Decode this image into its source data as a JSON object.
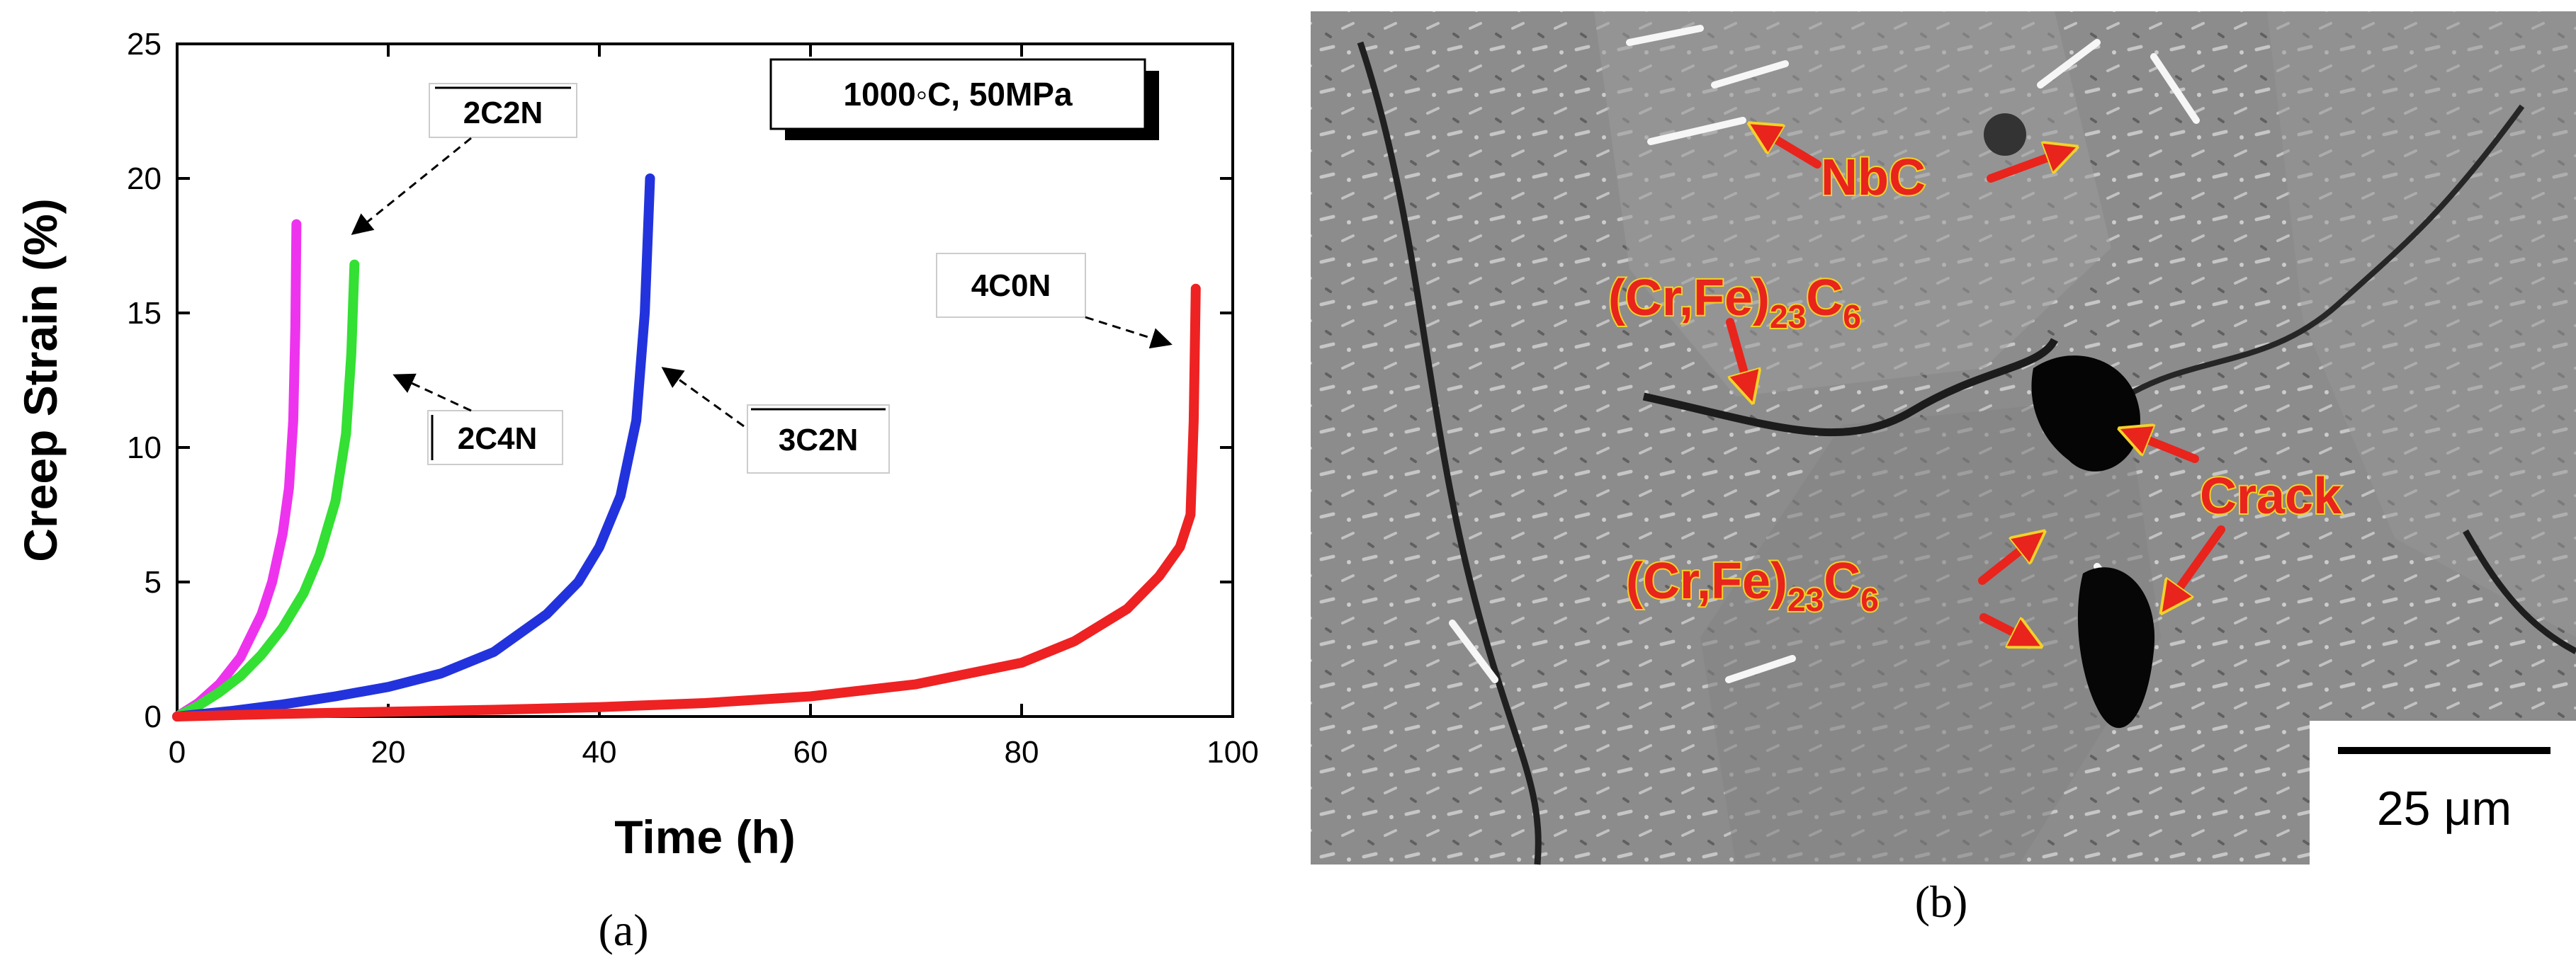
{
  "panel_a": {
    "label": "(a)",
    "condition": "1000◦C, 50MPa",
    "annotations": [
      "2C2N",
      "2C4N",
      "3C2N",
      "4C0N"
    ]
  },
  "panel_b": {
    "label": "(b)",
    "phase_labels": {
      "nbc": "NbC",
      "carbide_main": "(Cr,Fe)",
      "carbide_sub1": "23",
      "carbide_c": "C",
      "carbide_sub2": "6",
      "crack": "Crack"
    },
    "scale_bar": "25 μm"
  },
  "chart_data": {
    "type": "line",
    "title": "",
    "xlabel": "Time (h)",
    "ylabel": "Creep Strain (%)",
    "xlim": [
      0,
      100
    ],
    "ylim": [
      0,
      25
    ],
    "xticks": [
      0,
      20,
      40,
      60,
      80,
      100
    ],
    "yticks": [
      0,
      5,
      10,
      15,
      20,
      25
    ],
    "grid": false,
    "series": [
      {
        "name": "2C2N",
        "color": "#ee33ee",
        "x": [
          0,
          2,
          4,
          6,
          8,
          9,
          10,
          10.6,
          11,
          11.2,
          11.3
        ],
        "y": [
          0,
          0.5,
          1.2,
          2.2,
          3.8,
          5.0,
          6.8,
          8.5,
          11.0,
          14.5,
          18.3
        ]
      },
      {
        "name": "2C4N",
        "color": "#33e033",
        "x": [
          0,
          2,
          4,
          6,
          8,
          10,
          12,
          13.5,
          15,
          16,
          16.5,
          16.8
        ],
        "y": [
          0,
          0.4,
          0.9,
          1.5,
          2.3,
          3.3,
          4.6,
          6.0,
          8.0,
          10.5,
          13.5,
          16.8
        ]
      },
      {
        "name": "3C2N",
        "color": "#2233dd",
        "x": [
          0,
          5,
          10,
          15,
          20,
          25,
          30,
          35,
          38,
          40,
          42,
          43.5,
          44.3,
          44.8
        ],
        "y": [
          0,
          0.2,
          0.45,
          0.75,
          1.1,
          1.6,
          2.4,
          3.8,
          5.0,
          6.3,
          8.2,
          11.0,
          15.0,
          20.0
        ]
      },
      {
        "name": "4C0N",
        "color": "#ee2222",
        "x": [
          0,
          10,
          20,
          30,
          40,
          50,
          60,
          70,
          80,
          85,
          90,
          93,
          95,
          96,
          96.3,
          96.5
        ],
        "y": [
          0,
          0.1,
          0.18,
          0.25,
          0.35,
          0.5,
          0.75,
          1.2,
          2.0,
          2.8,
          4.0,
          5.2,
          6.3,
          7.5,
          11.0,
          15.9
        ]
      }
    ]
  }
}
